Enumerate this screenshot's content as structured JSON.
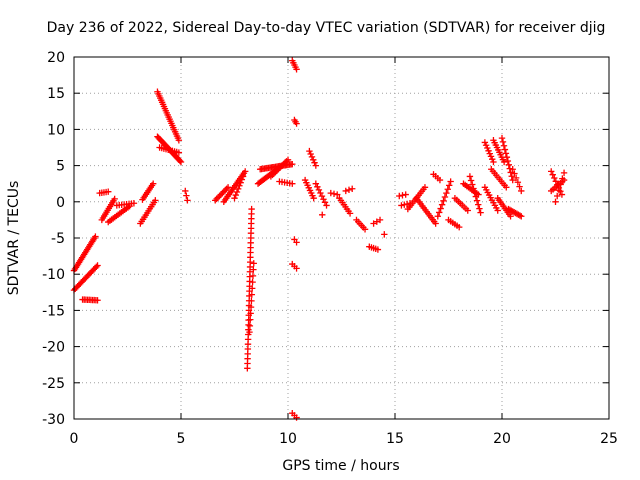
{
  "chart_data": {
    "type": "scatter",
    "title": "Day 236 of 2022, Sidereal Day-to-day VTEC variation (SDTVAR) for receiver djig",
    "xlabel": "GPS time / hours",
    "ylabel": "SDTVAR / TECUs",
    "xlim": [
      0,
      25
    ],
    "ylim": [
      -30,
      20
    ],
    "xticks": [
      0,
      5,
      10,
      15,
      20,
      25
    ],
    "yticks": [
      -30,
      -25,
      -20,
      -15,
      -10,
      -5,
      0,
      5,
      10,
      15,
      20
    ],
    "grid": true,
    "marker": "+",
    "color": "#ff0000",
    "series": [
      {
        "name": "SDTVAR",
        "segments": [
          {
            "x0": 0.0,
            "y0": -9.5,
            "x1": 1.0,
            "y1": -4.8,
            "n": 22
          },
          {
            "x0": 0.0,
            "y0": -12.2,
            "x1": 1.1,
            "y1": -8.8,
            "n": 20
          },
          {
            "x0": 0.4,
            "y0": -13.5,
            "x1": 1.1,
            "y1": -13.6,
            "n": 10
          },
          {
            "x0": 1.2,
            "y0": 1.2,
            "x1": 1.6,
            "y1": 1.4,
            "n": 5
          },
          {
            "x0": 1.3,
            "y0": -2.5,
            "x1": 1.9,
            "y1": 0.4,
            "n": 12
          },
          {
            "x0": 1.6,
            "y0": -2.8,
            "x1": 2.6,
            "y1": -0.6,
            "n": 14
          },
          {
            "x0": 2.0,
            "y0": -0.5,
            "x1": 2.8,
            "y1": -0.2,
            "n": 8
          },
          {
            "x0": 3.1,
            "y0": -3.0,
            "x1": 3.8,
            "y1": 0.2,
            "n": 12
          },
          {
            "x0": 3.2,
            "y0": 0.3,
            "x1": 3.7,
            "y1": 2.5,
            "n": 10
          },
          {
            "x0": 3.9,
            "y0": 15.2,
            "x1": 4.9,
            "y1": 8.5,
            "n": 24
          },
          {
            "x0": 3.9,
            "y0": 9.0,
            "x1": 5.0,
            "y1": 5.5,
            "n": 24
          },
          {
            "x0": 4.0,
            "y0": 7.5,
            "x1": 4.9,
            "y1": 6.8,
            "n": 10
          },
          {
            "x0": 5.2,
            "y0": 1.5,
            "x1": 5.3,
            "y1": 0.2,
            "n": 3
          },
          {
            "x0": 6.6,
            "y0": 0.2,
            "x1": 7.2,
            "y1": 2.0,
            "n": 10
          },
          {
            "x0": 7.0,
            "y0": 0.0,
            "x1": 8.0,
            "y1": 4.2,
            "n": 18
          },
          {
            "x0": 7.5,
            "y0": 0.5,
            "x1": 7.9,
            "y1": 3.5,
            "n": 8
          },
          {
            "x0": 8.1,
            "y0": -23.0,
            "x1": 8.3,
            "y1": -1.0,
            "n": 34
          },
          {
            "x0": 8.2,
            "y0": -18.0,
            "x1": 8.4,
            "y1": -8.5,
            "n": 12
          },
          {
            "x0": 8.6,
            "y0": 2.5,
            "x1": 9.5,
            "y1": 4.5,
            "n": 16
          },
          {
            "x0": 8.7,
            "y0": 4.5,
            "x1": 10.2,
            "y1": 5.2,
            "n": 24
          },
          {
            "x0": 9.2,
            "y0": 3.5,
            "x1": 10.0,
            "y1": 5.8,
            "n": 12
          },
          {
            "x0": 9.6,
            "y0": 2.8,
            "x1": 10.2,
            "y1": 2.5,
            "n": 6
          },
          {
            "x0": 10.2,
            "y0": 19.5,
            "x1": 10.4,
            "y1": 18.3,
            "n": 5
          },
          {
            "x0": 10.3,
            "y0": 11.3,
            "x1": 10.4,
            "y1": 10.8,
            "n": 3
          },
          {
            "x0": 10.3,
            "y0": -5.2,
            "x1": 10.4,
            "y1": -5.6,
            "n": 2
          },
          {
            "x0": 10.2,
            "y0": -8.6,
            "x1": 10.4,
            "y1": -9.2,
            "n": 3
          },
          {
            "x0": 10.2,
            "y0": -29.2,
            "x1": 10.4,
            "y1": -29.8,
            "n": 3
          },
          {
            "x0": 10.8,
            "y0": 3.0,
            "x1": 11.2,
            "y1": 0.5,
            "n": 8
          },
          {
            "x0": 11.0,
            "y0": 7.0,
            "x1": 11.3,
            "y1": 5.0,
            "n": 6
          },
          {
            "x0": 11.3,
            "y0": 2.5,
            "x1": 11.8,
            "y1": -0.5,
            "n": 8
          },
          {
            "x0": 11.6,
            "y0": -1.8,
            "x1": 11.6,
            "y1": -1.8,
            "n": 1
          },
          {
            "x0": 12.0,
            "y0": 1.2,
            "x1": 12.3,
            "y1": 1.0,
            "n": 3
          },
          {
            "x0": 12.4,
            "y0": 0.5,
            "x1": 12.9,
            "y1": -1.6,
            "n": 8
          },
          {
            "x0": 12.7,
            "y0": 1.5,
            "x1": 13.0,
            "y1": 1.8,
            "n": 3
          },
          {
            "x0": 13.2,
            "y0": -2.5,
            "x1": 13.6,
            "y1": -3.8,
            "n": 6
          },
          {
            "x0": 13.8,
            "y0": -6.2,
            "x1": 14.2,
            "y1": -6.6,
            "n": 5
          },
          {
            "x0": 14.0,
            "y0": -3.0,
            "x1": 14.3,
            "y1": -2.5,
            "n": 3
          },
          {
            "x0": 14.5,
            "y0": -4.5,
            "x1": 14.5,
            "y1": -4.5,
            "n": 1
          },
          {
            "x0": 15.2,
            "y0": 0.8,
            "x1": 15.5,
            "y1": 1.0,
            "n": 3
          },
          {
            "x0": 15.3,
            "y0": -0.5,
            "x1": 15.7,
            "y1": -0.2,
            "n": 4
          },
          {
            "x0": 15.6,
            "y0": -1.0,
            "x1": 16.4,
            "y1": 2.0,
            "n": 12
          },
          {
            "x0": 16.0,
            "y0": 0.5,
            "x1": 16.9,
            "y1": -3.0,
            "n": 14
          },
          {
            "x0": 16.8,
            "y0": 3.8,
            "x1": 17.1,
            "y1": 3.0,
            "n": 4
          },
          {
            "x0": 17.0,
            "y0": -2.0,
            "x1": 17.6,
            "y1": 2.8,
            "n": 10
          },
          {
            "x0": 17.5,
            "y0": -2.5,
            "x1": 18.0,
            "y1": -3.5,
            "n": 6
          },
          {
            "x0": 17.8,
            "y0": 0.5,
            "x1": 18.4,
            "y1": -1.2,
            "n": 8
          },
          {
            "x0": 18.2,
            "y0": 2.5,
            "x1": 18.9,
            "y1": 1.0,
            "n": 10
          },
          {
            "x0": 18.5,
            "y0": 3.5,
            "x1": 19.0,
            "y1": -1.5,
            "n": 10
          },
          {
            "x0": 19.2,
            "y0": 8.2,
            "x1": 19.6,
            "y1": 5.5,
            "n": 8
          },
          {
            "x0": 19.2,
            "y0": 2.0,
            "x1": 19.8,
            "y1": -1.2,
            "n": 10
          },
          {
            "x0": 19.5,
            "y0": 4.5,
            "x1": 20.2,
            "y1": 2.0,
            "n": 10
          },
          {
            "x0": 19.6,
            "y0": 8.5,
            "x1": 20.1,
            "y1": 5.5,
            "n": 10
          },
          {
            "x0": 19.8,
            "y0": 0.5,
            "x1": 20.4,
            "y1": -2.0,
            "n": 10
          },
          {
            "x0": 20.0,
            "y0": 8.8,
            "x1": 20.5,
            "y1": 3.0,
            "n": 12
          },
          {
            "x0": 20.3,
            "y0": -1.0,
            "x1": 20.9,
            "y1": -2.0,
            "n": 10
          },
          {
            "x0": 20.5,
            "y0": 4.5,
            "x1": 20.9,
            "y1": 1.5,
            "n": 6
          },
          {
            "x0": 22.3,
            "y0": 4.2,
            "x1": 22.8,
            "y1": 1.0,
            "n": 8
          },
          {
            "x0": 22.3,
            "y0": 1.5,
            "x1": 22.9,
            "y1": 3.0,
            "n": 8
          },
          {
            "x0": 22.5,
            "y0": 0.0,
            "x1": 22.9,
            "y1": 4.0,
            "n": 6
          }
        ]
      }
    ]
  }
}
